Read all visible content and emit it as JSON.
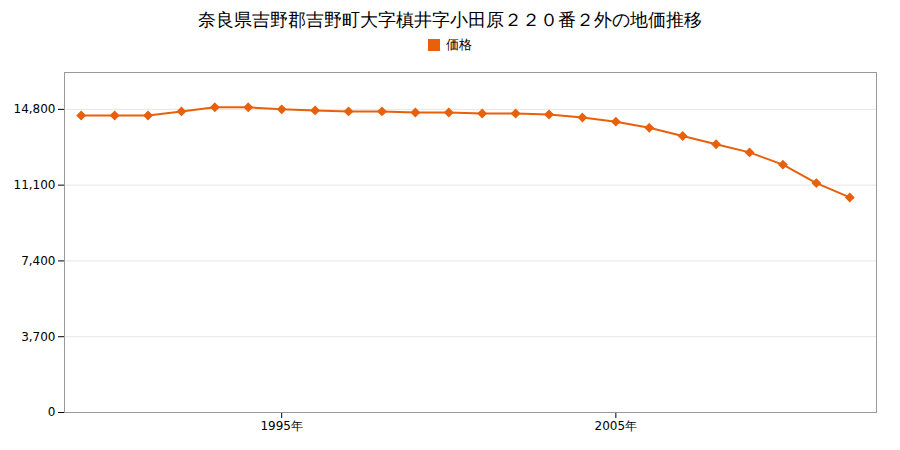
{
  "chart_data": {
    "type": "line",
    "title": "奈良県吉野郡吉野町大字槙井字小田原２２０番２外の地価推移",
    "x": [
      1989,
      1990,
      1991,
      1992,
      1993,
      1994,
      1995,
      1996,
      1997,
      1998,
      1999,
      2000,
      2001,
      2002,
      2003,
      2004,
      2005,
      2006,
      2007,
      2008,
      2009,
      2010,
      2011,
      2012
    ],
    "series": [
      {
        "name": "価格",
        "color": "#e8600a",
        "marker": "diamond",
        "values": [
          14500,
          14500,
          14500,
          14700,
          14900,
          14900,
          14800,
          14750,
          14700,
          14700,
          14650,
          14650,
          14600,
          14600,
          14550,
          14400,
          14200,
          13900,
          13500,
          13100,
          12700,
          12100,
          11200,
          10500
        ]
      }
    ],
    "xlim": [
      1988.5,
      2012.8
    ],
    "xticks": [
      {
        "value": 1995,
        "label": "1995年"
      },
      {
        "value": 2005,
        "label": "2005年"
      }
    ],
    "ylim": [
      0,
      16600
    ],
    "yticks": [
      0,
      {
        "value": 3700,
        "label": "3,700"
      },
      {
        "value": 7400,
        "label": "7,400"
      },
      {
        "value": 11100,
        "label": "11,100"
      },
      {
        "value": 14800,
        "label": "14,800"
      }
    ],
    "grid": "y",
    "legend": "top"
  }
}
